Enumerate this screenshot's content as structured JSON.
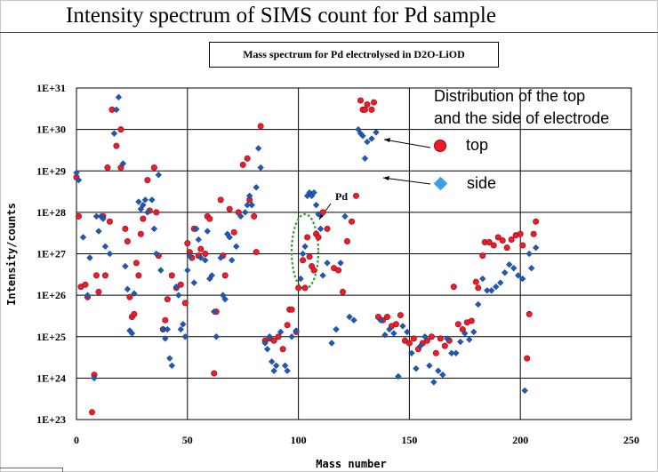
{
  "slide": {
    "title": "Intensity spectrum of SIMS count for Pd sample"
  },
  "chart_data": {
    "type": "scatter",
    "title": "Mass spectrum for Pd electrolysed in D2O-LiOD",
    "xlabel": "Mass number",
    "ylabel": "Intensity/counts",
    "xlim": [
      0,
      250
    ],
    "ylim": [
      1e+23,
      1e+31
    ],
    "yscale": "log",
    "grid": true,
    "x_ticks": [
      "0",
      "50",
      "100",
      "150",
      "200",
      "250"
    ],
    "y_ticks": [
      "1E+23",
      "1E+24",
      "1E+25",
      "1E+26",
      "1E+27",
      "1E+28",
      "1E+29",
      "1E+30",
      "1E+31"
    ],
    "legend": {
      "heading": "Distribution of the top\nand the side of electrode",
      "placement": "top-right"
    },
    "annotation": {
      "text": "Pd",
      "x": 105,
      "y": 5e+26
    },
    "series": [
      {
        "name": "top",
        "color": "#ee1b2b",
        "marker": "circle",
        "points": [
          [
            0,
            7e+28
          ],
          [
            1,
            8e+27
          ],
          [
            2,
            1.6e+26
          ],
          [
            4,
            1.8e+26
          ],
          [
            5,
            9e+25
          ],
          [
            7,
            1.5e+23
          ],
          [
            8,
            1.2e+24
          ],
          [
            9,
            3e+26
          ],
          [
            10,
            1.2e+26
          ],
          [
            12,
            8e+27
          ],
          [
            13,
            3e+26
          ],
          [
            14,
            1.2e+29
          ],
          [
            15,
            6e+27
          ],
          [
            16,
            3e+30
          ],
          [
            18,
            4e+29
          ],
          [
            20,
            1e+30
          ],
          [
            20,
            1.2e+29
          ],
          [
            22,
            4e+27
          ],
          [
            23,
            2e+27
          ],
          [
            24,
            9e+25
          ],
          [
            25,
            3e+25
          ],
          [
            26,
            3.5e+25
          ],
          [
            27,
            6e+26
          ],
          [
            28,
            3e+26
          ],
          [
            29,
            3e+27
          ],
          [
            30,
            7e+27
          ],
          [
            32,
            6e+28
          ],
          [
            33,
            1.1e+28
          ],
          [
            35,
            1.2e+29
          ],
          [
            36,
            1e+28
          ],
          [
            37,
            9e+26
          ],
          [
            39,
            1.5e+25
          ],
          [
            40,
            2.5e+25
          ],
          [
            41,
            8e+25
          ],
          [
            43,
            3e+26
          ],
          [
            45,
            1.5e+26
          ],
          [
            47,
            1.8e+26
          ],
          [
            49,
            6.5e+25
          ],
          [
            50,
            1.8e+27
          ],
          [
            51,
            1.1e+27
          ],
          [
            52,
            8e+26
          ],
          [
            53,
            4e+27
          ],
          [
            55,
            9e+26
          ],
          [
            56,
            1.3e+27
          ],
          [
            58,
            1e+27
          ],
          [
            59,
            8e+27
          ],
          [
            60,
            7e+27
          ],
          [
            62,
            1.3e+24
          ],
          [
            63,
            4e+25
          ],
          [
            65,
            2e+28
          ],
          [
            66,
            9e+26
          ],
          [
            67,
            3e+26
          ],
          [
            69,
            1.2e+28
          ],
          [
            71,
            3.3e+27
          ],
          [
            73,
            1e+28
          ],
          [
            75,
            1.4e+29
          ],
          [
            77,
            2e+29
          ],
          [
            78,
            2e+28
          ],
          [
            80,
            8e+27
          ],
          [
            81,
            1.1e+27
          ],
          [
            83,
            1.2e+30
          ],
          [
            85,
            8e+24
          ],
          [
            87,
            9e+24
          ],
          [
            89,
            8e+24
          ],
          [
            91,
            1e+25
          ],
          [
            93,
            5e+24
          ],
          [
            95,
            1.9e+25
          ],
          [
            96,
            4.5e+25
          ],
          [
            97,
            4.5e+25
          ],
          [
            99,
            1.3e+25
          ],
          [
            100,
            1.5e+26
          ],
          [
            102,
            7e+26
          ],
          [
            103,
            1.5e+26
          ],
          [
            104,
            2.5e+27
          ],
          [
            105,
            8.5e+26
          ],
          [
            106,
            5e+26
          ],
          [
            107,
            4e+26
          ],
          [
            108,
            3e+27
          ],
          [
            109,
            2.5e+27
          ],
          [
            111,
            1e+28
          ],
          [
            113,
            4e+27
          ],
          [
            116,
            4.5e+26
          ],
          [
            118,
            4e+26
          ],
          [
            120,
            1.2e+26
          ],
          [
            122,
            2e+27
          ],
          [
            124,
            6e+27
          ],
          [
            126,
            2.5e+28
          ],
          [
            128,
            5e+30
          ],
          [
            129,
            3e+30
          ],
          [
            130,
            3e+30
          ],
          [
            131,
            4e+30
          ],
          [
            133,
            3e+30
          ],
          [
            134,
            4.5e+30
          ],
          [
            136,
            3e+25
          ],
          [
            138,
            2.5e+25
          ],
          [
            140,
            3e+25
          ],
          [
            142,
            1.8e+25
          ],
          [
            144,
            2e+25
          ],
          [
            146,
            3.3e+25
          ],
          [
            148,
            8e+24
          ],
          [
            150,
            7e+24
          ],
          [
            152,
            9e+24
          ],
          [
            154,
            5e+24
          ],
          [
            156,
            7e+24
          ],
          [
            158,
            8e+24
          ],
          [
            160,
            1e+25
          ],
          [
            162,
            4e+24
          ],
          [
            164,
            9e+24
          ],
          [
            166,
            6e+24
          ],
          [
            168,
            8e+24
          ],
          [
            170,
            1.6e+26
          ],
          [
            172,
            2e+25
          ],
          [
            174,
            1.5e+25
          ],
          [
            176,
            2.2e+25
          ],
          [
            178,
            2.4e+25
          ],
          [
            180,
            2.1e+26
          ],
          [
            181,
            1.5e+26
          ],
          [
            183,
            9e+26
          ],
          [
            184,
            1.9e+27
          ],
          [
            186,
            1.9e+27
          ],
          [
            188,
            1.6e+27
          ],
          [
            190,
            2.5e+27
          ],
          [
            192,
            2.1e+27
          ],
          [
            194,
            1.4e+27
          ],
          [
            196,
            2.2e+27
          ],
          [
            198,
            2.8e+27
          ],
          [
            200,
            3e+27
          ],
          [
            201,
            1.6e+27
          ],
          [
            203,
            3e+24
          ],
          [
            204,
            3.5e+25
          ],
          [
            206,
            3e+27
          ],
          [
            207,
            6e+27
          ]
        ]
      },
      {
        "name": "side",
        "color": "#3aa0ee",
        "marker": "diamond",
        "points": [
          [
            0,
            9e+28
          ],
          [
            1,
            6e+28
          ],
          [
            3,
            2.5e+27
          ],
          [
            5,
            1e+26
          ],
          [
            6,
            8e+26
          ],
          [
            8,
            1e+24
          ],
          [
            9,
            8e+27
          ],
          [
            10,
            3.5e+27
          ],
          [
            11,
            8e+27
          ],
          [
            12,
            7e+27
          ],
          [
            13,
            1.5e+27
          ],
          [
            15,
            1e+27
          ],
          [
            17,
            8e+29
          ],
          [
            18,
            3e+30
          ],
          [
            19,
            6e+30
          ],
          [
            21,
            1.5e+29
          ],
          [
            22,
            5e+26
          ],
          [
            23,
            1.4e+26
          ],
          [
            24,
            1.4e+25
          ],
          [
            25,
            1.2e+25
          ],
          [
            26,
            1.1e+26
          ],
          [
            28,
            1.8e+28
          ],
          [
            29,
            1.2e+28
          ],
          [
            30,
            1.5e+28
          ],
          [
            31,
            2e+28
          ],
          [
            32,
            1e+28
          ],
          [
            34,
            2e+28
          ],
          [
            35,
            4e+27
          ],
          [
            36,
            1e+27
          ],
          [
            37,
            8e+28
          ],
          [
            38,
            4e+26
          ],
          [
            39,
            1.5e+25
          ],
          [
            40,
            9e+24
          ],
          [
            41,
            1.5e+25
          ],
          [
            42,
            3e+24
          ],
          [
            43,
            2e+24
          ],
          [
            45,
            1.6e+26
          ],
          [
            46,
            1e+26
          ],
          [
            47,
            1.5e+25
          ],
          [
            48,
            2e+25
          ],
          [
            49,
            1e+25
          ],
          [
            50,
            4e+26
          ],
          [
            51,
            9e+26
          ],
          [
            53,
            2e+26
          ],
          [
            54,
            4e+27
          ],
          [
            55,
            2.2e+27
          ],
          [
            56,
            8e+26
          ],
          [
            58,
            7e+26
          ],
          [
            59,
            3.5e+27
          ],
          [
            60,
            2.5e+26
          ],
          [
            61,
            3e+26
          ],
          [
            62,
            4e+25
          ],
          [
            63,
            1e+25
          ],
          [
            65,
            8e+26
          ],
          [
            66,
            1e+26
          ],
          [
            67,
            8e+25
          ],
          [
            68,
            3e+27
          ],
          [
            69,
            2.5e+27
          ],
          [
            70,
            7e+26
          ],
          [
            72,
            1.5e+27
          ],
          [
            74,
            8e+27
          ],
          [
            76,
            1e+28
          ],
          [
            77,
            1.5e+28
          ],
          [
            78,
            2.5e+28
          ],
          [
            79,
            1.5e+28
          ],
          [
            81,
            4e+28
          ],
          [
            82,
            3.5e+29
          ],
          [
            83,
            1.2e+29
          ],
          [
            85,
            7e+24
          ],
          [
            86,
            5e+24
          ],
          [
            87,
            1e+25
          ],
          [
            88,
            2.5e+24
          ],
          [
            89,
            1.5e+24
          ],
          [
            90,
            2e+24
          ],
          [
            92,
            1.3e+25
          ],
          [
            94,
            2e+24
          ],
          [
            95,
            1.5e+24
          ],
          [
            97,
            1e+25
          ],
          [
            99,
            1.4e+25
          ],
          [
            101,
            2.5e+26
          ],
          [
            102,
            1e+27
          ],
          [
            103,
            1.5e+27
          ],
          [
            104,
            2.5e+28
          ],
          [
            105,
            3e+28
          ],
          [
            106,
            2.5e+28
          ],
          [
            107,
            3e+28
          ],
          [
            108,
            1.5e+28
          ],
          [
            109,
            9e+27
          ],
          [
            110,
            4e+27
          ],
          [
            111,
            3e+26
          ],
          [
            113,
            6e+26
          ],
          [
            115,
            7e+24
          ],
          [
            117,
            1.5e+25
          ],
          [
            119,
            6e+26
          ],
          [
            121,
            8e+27
          ],
          [
            123,
            3e+25
          ],
          [
            125,
            2.5e+25
          ],
          [
            127,
            1e+30
          ],
          [
            128,
            8e+29
          ],
          [
            129,
            7e+29
          ],
          [
            130,
            2e+29
          ],
          [
            131,
            5e+29
          ],
          [
            133,
            6e+29
          ],
          [
            135,
            8.5e+29
          ],
          [
            137,
            2.5e+25
          ],
          [
            139,
            1.1e+25
          ],
          [
            141,
            1.5e+25
          ],
          [
            143,
            1.2e+25
          ],
          [
            145,
            1.1e+24
          ],
          [
            147,
            1.8e+25
          ],
          [
            149,
            1.3e+25
          ],
          [
            151,
            4e+24
          ],
          [
            153,
            1.7e+24
          ],
          [
            155,
            6e+24
          ],
          [
            157,
            1e+25
          ],
          [
            159,
            2e+24
          ],
          [
            161,
            8e+23
          ],
          [
            163,
            1.5e+24
          ],
          [
            165,
            1.2e+24
          ],
          [
            167,
            9e+24
          ],
          [
            169,
            4e+24
          ],
          [
            171,
            4e+24
          ],
          [
            173,
            7.5e+24
          ],
          [
            175,
            1.2e+25
          ],
          [
            177,
            8.5e+24
          ],
          [
            179,
            1.3e+25
          ],
          [
            181,
            6e+25
          ],
          [
            183,
            2.5e+26
          ],
          [
            185,
            1.3e+26
          ],
          [
            187,
            1.3e+26
          ],
          [
            189,
            1.6e+26
          ],
          [
            191,
            2e+26
          ],
          [
            193,
            3.5e+26
          ],
          [
            195,
            5.5e+26
          ],
          [
            197,
            4.5e+26
          ],
          [
            199,
            3e+26
          ],
          [
            201,
            2.5e+26
          ],
          [
            202,
            5e+23
          ],
          [
            204,
            1e+27
          ],
          [
            205,
            4.5e+26
          ],
          [
            207,
            1.4e+27
          ]
        ]
      }
    ]
  }
}
